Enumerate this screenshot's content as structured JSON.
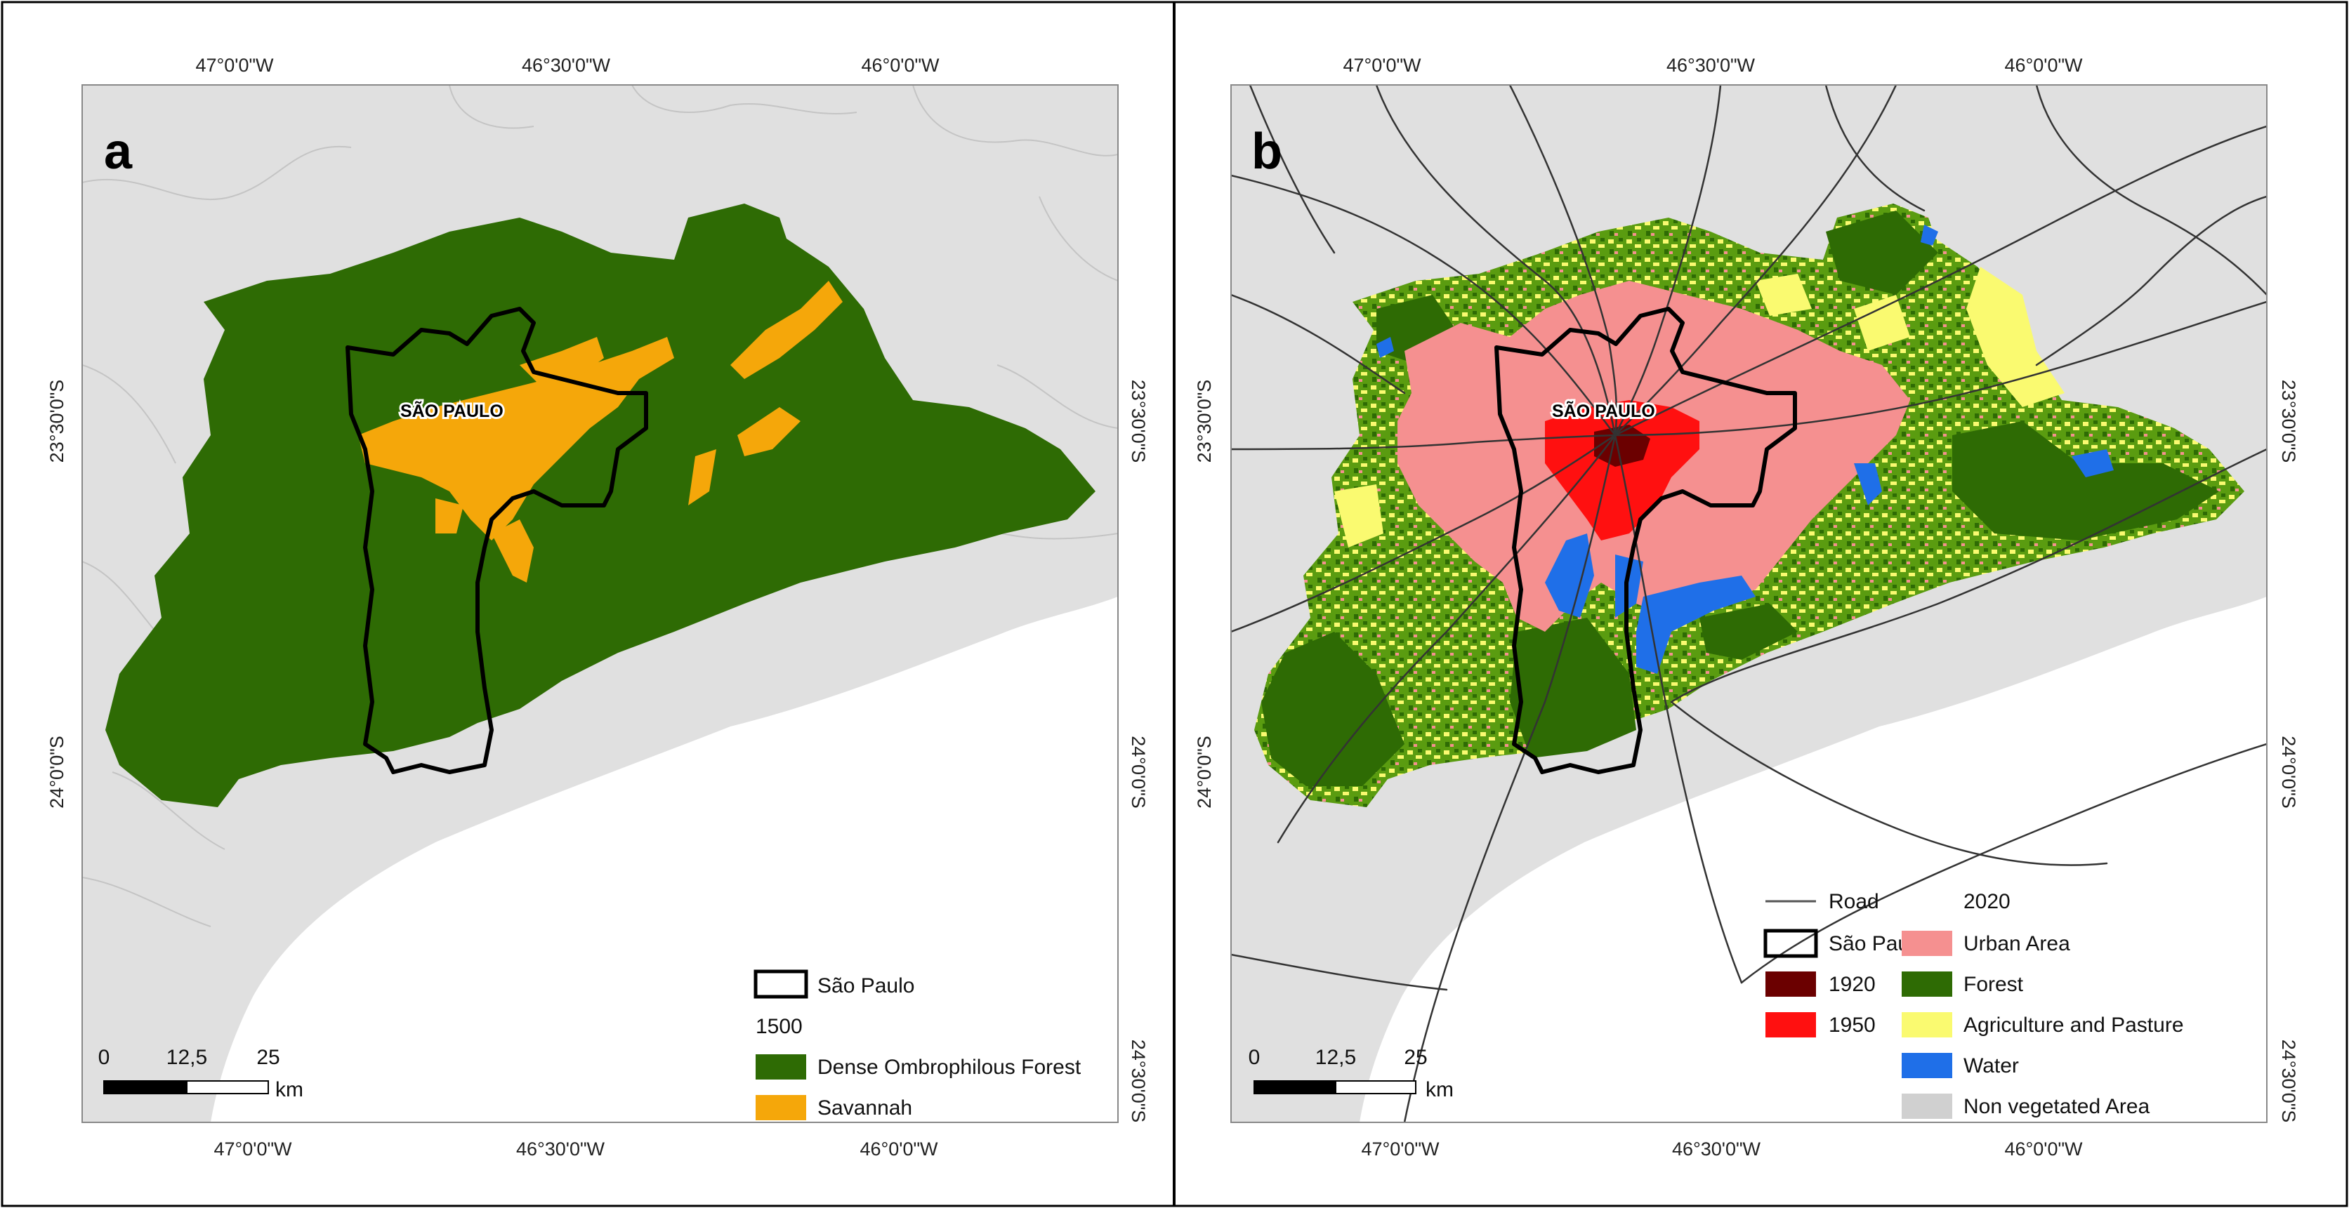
{
  "panels": [
    {
      "letter": "a",
      "top_labels": [
        "47°0'0\"W",
        "46°30'0\"W",
        "46°0'0\"W"
      ],
      "bottom_labels": [
        "47°0'0\"W",
        "46°30'0\"W",
        "46°0'0\"W"
      ],
      "left_labels": [
        "23°30'0\"S",
        "24°0'0\"S"
      ],
      "right_labels": [
        "23°30'0\"S",
        "24°0'0\"S",
        "24°30'0\"S"
      ],
      "city_label": "SÃO PAULO",
      "scale": {
        "ticks": [
          "0",
          "12,5",
          "25"
        ],
        "unit": "km"
      },
      "legend": {
        "boundary": "São Paulo",
        "year": "1500",
        "classes": [
          {
            "label": "Dense Ombrophilous Forest",
            "color": "#2e6b04"
          },
          {
            "label": "Savannah",
            "color": "#f5a70a"
          }
        ]
      }
    },
    {
      "letter": "b",
      "top_labels": [
        "47°0'0\"W",
        "46°30'0\"W",
        "46°0'0\"W"
      ],
      "bottom_labels": [
        "47°0'0\"W",
        "46°30'0\"W",
        "46°0'0\"W"
      ],
      "left_labels": [
        "23°30'0\"S",
        "24°0'0\"S"
      ],
      "right_labels": [
        "23°30'0\"S",
        "24°0'0\"S",
        "24°30'0\"S"
      ],
      "city_label": "SÃO PAULO",
      "scale": {
        "ticks": [
          "0",
          "12,5",
          "25"
        ],
        "unit": "km"
      },
      "legend": {
        "road": "Road",
        "boundary": "São Paulo",
        "periods": [
          {
            "label": "1920",
            "color": "#6b0000"
          },
          {
            "label": "1950",
            "color": "#ff1010"
          }
        ],
        "year": "2020",
        "classes": [
          {
            "label": "Urban Area",
            "color": "#f59090"
          },
          {
            "label": "Forest",
            "color": "#2e6b04"
          },
          {
            "label": "Agriculture and Pasture",
            "color": "#fafa70"
          },
          {
            "label": "Water",
            "color": "#1f6fe8"
          },
          {
            "label": "Non vegetated Area",
            "color": "#d0d0d0"
          }
        ]
      }
    }
  ],
  "colors": {
    "land": "#e0e0e0",
    "sea": "#ffffff",
    "municipal_lines": "#c4c4c4",
    "boundary": "#000000",
    "road": "#333333"
  }
}
